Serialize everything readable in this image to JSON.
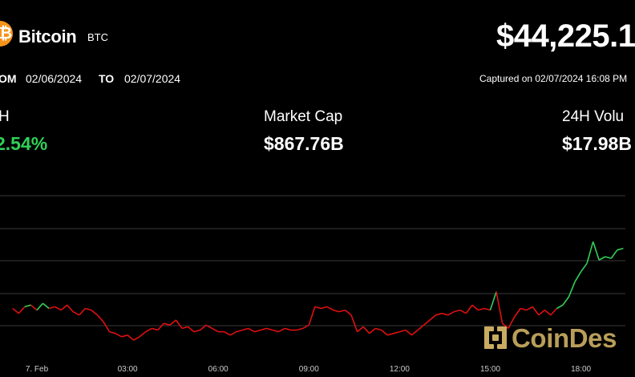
{
  "coin": {
    "logo_glyph": "₿",
    "name": "Bitcoin",
    "ticker": "BTC",
    "price": "$44,225.1",
    "brand_color": "#f7931a"
  },
  "range": {
    "from_label": "OM",
    "from_date": "02/06/2024",
    "to_label": "TO",
    "to_date": "02/07/2024",
    "captured": "Captured on 02/07/2024 16:08 PM"
  },
  "stats": {
    "change_label": "H",
    "change_value": "2.54%",
    "market_cap_label": "Market Cap",
    "market_cap_value": "$867.76B",
    "volume_label": "24H Volu",
    "volume_value": "$17.98B"
  },
  "colors": {
    "up": "#30d158",
    "down": "#e01010",
    "grid": "#3a3a3a"
  },
  "watermark": {
    "text": "CoinDes",
    "icon": "coindesk-logo-icon"
  },
  "chart_data": {
    "type": "line",
    "title": "",
    "xlabel": "",
    "ylabel": "",
    "x_ticks": [
      "7. Feb",
      "03:00",
      "06:00",
      "09:00",
      "12:00",
      "15:00",
      "18:00"
    ],
    "grid": "horizontal",
    "reference_price_note": "line colored green above open, red below open",
    "series": [
      {
        "x_hours": [
          -0.8,
          -0.6,
          -0.4,
          -0.2,
          0,
          0.2,
          0.4,
          0.6,
          0.8,
          1.0,
          1.2,
          1.4,
          1.6,
          1.8,
          2.0,
          2.2,
          2.4,
          2.6,
          2.8,
          3.0,
          3.2,
          3.4,
          3.6,
          3.8,
          4.0,
          4.2,
          4.4,
          4.6,
          4.8,
          5.0,
          5.2,
          5.4,
          5.6,
          5.8,
          6.0,
          6.2,
          6.4,
          6.6,
          6.8,
          7.0,
          7.2,
          7.4,
          7.6,
          7.8,
          8.0,
          8.2,
          8.4,
          8.6,
          8.8,
          9.0,
          9.2,
          9.4,
          9.6,
          9.8,
          10.0,
          10.2,
          10.4,
          10.6,
          10.8,
          11.0,
          11.2,
          11.4,
          11.6,
          11.8,
          12.0,
          12.2,
          12.4,
          12.6,
          12.8,
          13.0,
          13.2,
          13.4,
          13.6,
          13.8,
          14.0,
          14.2,
          14.4,
          14.6,
          14.8,
          15.0,
          15.2,
          15.4,
          15.6,
          15.8,
          16.0,
          16.2,
          16.4,
          16.6,
          16.8,
          17.0,
          17.2,
          17.4,
          17.6,
          17.8,
          18.0,
          18.2,
          18.4,
          18.6,
          18.8,
          19.0,
          19.2,
          19.4
        ],
        "values": [
          0.38,
          0.32,
          0.4,
          0.42,
          0.36,
          0.44,
          0.38,
          0.4,
          0.36,
          0.42,
          0.34,
          0.3,
          0.38,
          0.36,
          0.3,
          0.22,
          0.1,
          0.08,
          0.04,
          0.06,
          0.0,
          0.04,
          0.1,
          0.14,
          0.12,
          0.2,
          0.18,
          0.24,
          0.14,
          0.16,
          0.1,
          0.12,
          0.18,
          0.14,
          0.1,
          0.1,
          0.06,
          0.1,
          0.12,
          0.14,
          0.1,
          0.12,
          0.14,
          0.12,
          0.1,
          0.14,
          0.12,
          0.12,
          0.14,
          0.18,
          0.4,
          0.38,
          0.4,
          0.36,
          0.34,
          0.36,
          0.3,
          0.1,
          0.16,
          0.08,
          0.14,
          0.12,
          0.06,
          0.08,
          0.1,
          0.12,
          0.06,
          0.12,
          0.18,
          0.24,
          0.3,
          0.32,
          0.3,
          0.34,
          0.36,
          0.32,
          0.42,
          0.36,
          0.38,
          0.36,
          0.58,
          0.2,
          0.14,
          0.28,
          0.38,
          0.36,
          0.4,
          0.3,
          0.36,
          0.3,
          0.38,
          0.42,
          0.52,
          0.7,
          0.82,
          0.92,
          1.18,
          0.96,
          1.0,
          0.98,
          1.08,
          1.1
        ],
        "open": 0.4
      }
    ]
  }
}
